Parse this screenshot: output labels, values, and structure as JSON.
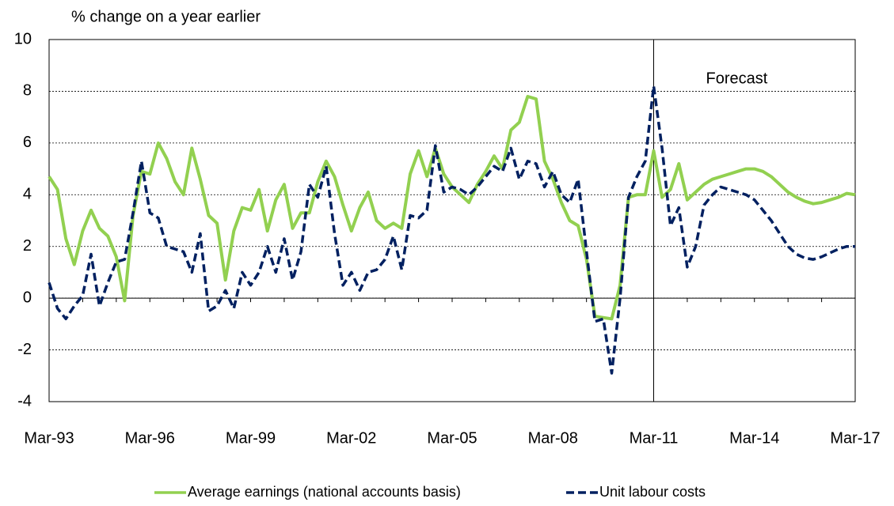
{
  "chart_data": {
    "type": "line",
    "ylabel": "% change on a year earlier",
    "categories": [
      "Mar-93",
      null,
      null,
      null,
      null,
      null,
      null,
      null,
      null,
      null,
      null,
      null,
      "Mar-96",
      null,
      null,
      null,
      null,
      null,
      null,
      null,
      null,
      null,
      null,
      null,
      "Mar-99",
      null,
      null,
      null,
      null,
      null,
      null,
      null,
      null,
      null,
      null,
      null,
      "Mar-02",
      null,
      null,
      null,
      null,
      null,
      null,
      null,
      null,
      null,
      null,
      null,
      "Mar-05",
      null,
      null,
      null,
      null,
      null,
      null,
      null,
      null,
      null,
      null,
      null,
      "Mar-08",
      null,
      null,
      null,
      null,
      null,
      null,
      null,
      null,
      null,
      null,
      null,
      "Mar-11",
      null,
      null,
      null,
      null,
      null,
      null,
      null,
      null,
      null,
      null,
      null,
      "Mar-14",
      null,
      null,
      null,
      null,
      null,
      null,
      null,
      null,
      null,
      null,
      null,
      "Mar-17"
    ],
    "series": [
      {
        "name": "Average earnings (national accounts basis)",
        "color": "#92d050",
        "dash": false,
        "values": [
          4.7,
          4.2,
          2.3,
          1.3,
          2.6,
          3.4,
          2.7,
          2.4,
          1.6,
          -0.1,
          3.2,
          4.9,
          4.8,
          6.0,
          5.4,
          4.5,
          4.0,
          5.8,
          4.6,
          3.2,
          2.9,
          0.7,
          2.6,
          3.5,
          3.4,
          4.2,
          2.6,
          3.8,
          4.4,
          2.7,
          3.3,
          3.3,
          4.5,
          5.3,
          4.7,
          3.6,
          2.6,
          3.5,
          4.1,
          3.0,
          2.7,
          2.9,
          2.7,
          4.8,
          5.7,
          4.7,
          5.8,
          4.8,
          4.3,
          4.0,
          3.7,
          4.4,
          4.9,
          5.5,
          5.0,
          6.5,
          6.8,
          7.8,
          7.7,
          5.3,
          4.6,
          3.7,
          3.0,
          2.8,
          1.5,
          -0.7,
          -0.75,
          -0.8,
          0.5,
          3.9,
          4.0,
          4.0,
          5.7,
          3.9,
          4.2,
          5.2,
          3.8,
          4.1,
          4.4,
          4.6,
          4.7,
          4.8,
          4.9,
          5.0,
          5.0,
          4.9,
          4.7,
          4.4,
          4.1,
          3.9,
          3.75,
          3.65,
          3.7,
          3.8,
          3.9,
          4.05,
          4.0
        ]
      },
      {
        "name": "Unit labour costs",
        "color": "#002060",
        "dash": true,
        "values": [
          0.6,
          -0.4,
          -0.8,
          -0.3,
          0.1,
          1.7,
          -0.3,
          0.6,
          1.4,
          1.5,
          3.3,
          5.3,
          3.3,
          3.1,
          2.0,
          1.9,
          1.8,
          1.0,
          2.5,
          -0.5,
          -0.3,
          0.3,
          -0.4,
          1.0,
          0.5,
          1.0,
          2.0,
          1.0,
          2.3,
          0.7,
          1.8,
          4.4,
          3.9,
          5.1,
          2.5,
          0.5,
          1.0,
          0.3,
          1.0,
          1.1,
          1.5,
          2.4,
          1.1,
          3.2,
          3.1,
          3.4,
          5.9,
          4.1,
          4.3,
          4.2,
          4.0,
          4.3,
          4.7,
          5.1,
          4.9,
          5.8,
          4.6,
          5.3,
          5.2,
          4.3,
          4.9,
          4.0,
          3.7,
          4.6,
          1.8,
          -0.9,
          -0.8,
          -2.9,
          0.0,
          3.9,
          4.7,
          5.3,
          8.2,
          5.8,
          2.8,
          3.5,
          1.2,
          2.0,
          3.6,
          4.0,
          4.3,
          4.2,
          4.1,
          4.0,
          3.8,
          3.4,
          3.0,
          2.5,
          2.0,
          1.7,
          1.55,
          1.5,
          1.6,
          1.75,
          1.9,
          2.0,
          2.0
        ]
      }
    ],
    "annotation": {
      "text": "Forecast",
      "x": "Mar-11"
    },
    "ylim": [
      -4,
      10
    ],
    "yticks": [
      -4,
      -2,
      0,
      2,
      4,
      6,
      8,
      10
    ],
    "grid": true,
    "legend": "bottom"
  }
}
